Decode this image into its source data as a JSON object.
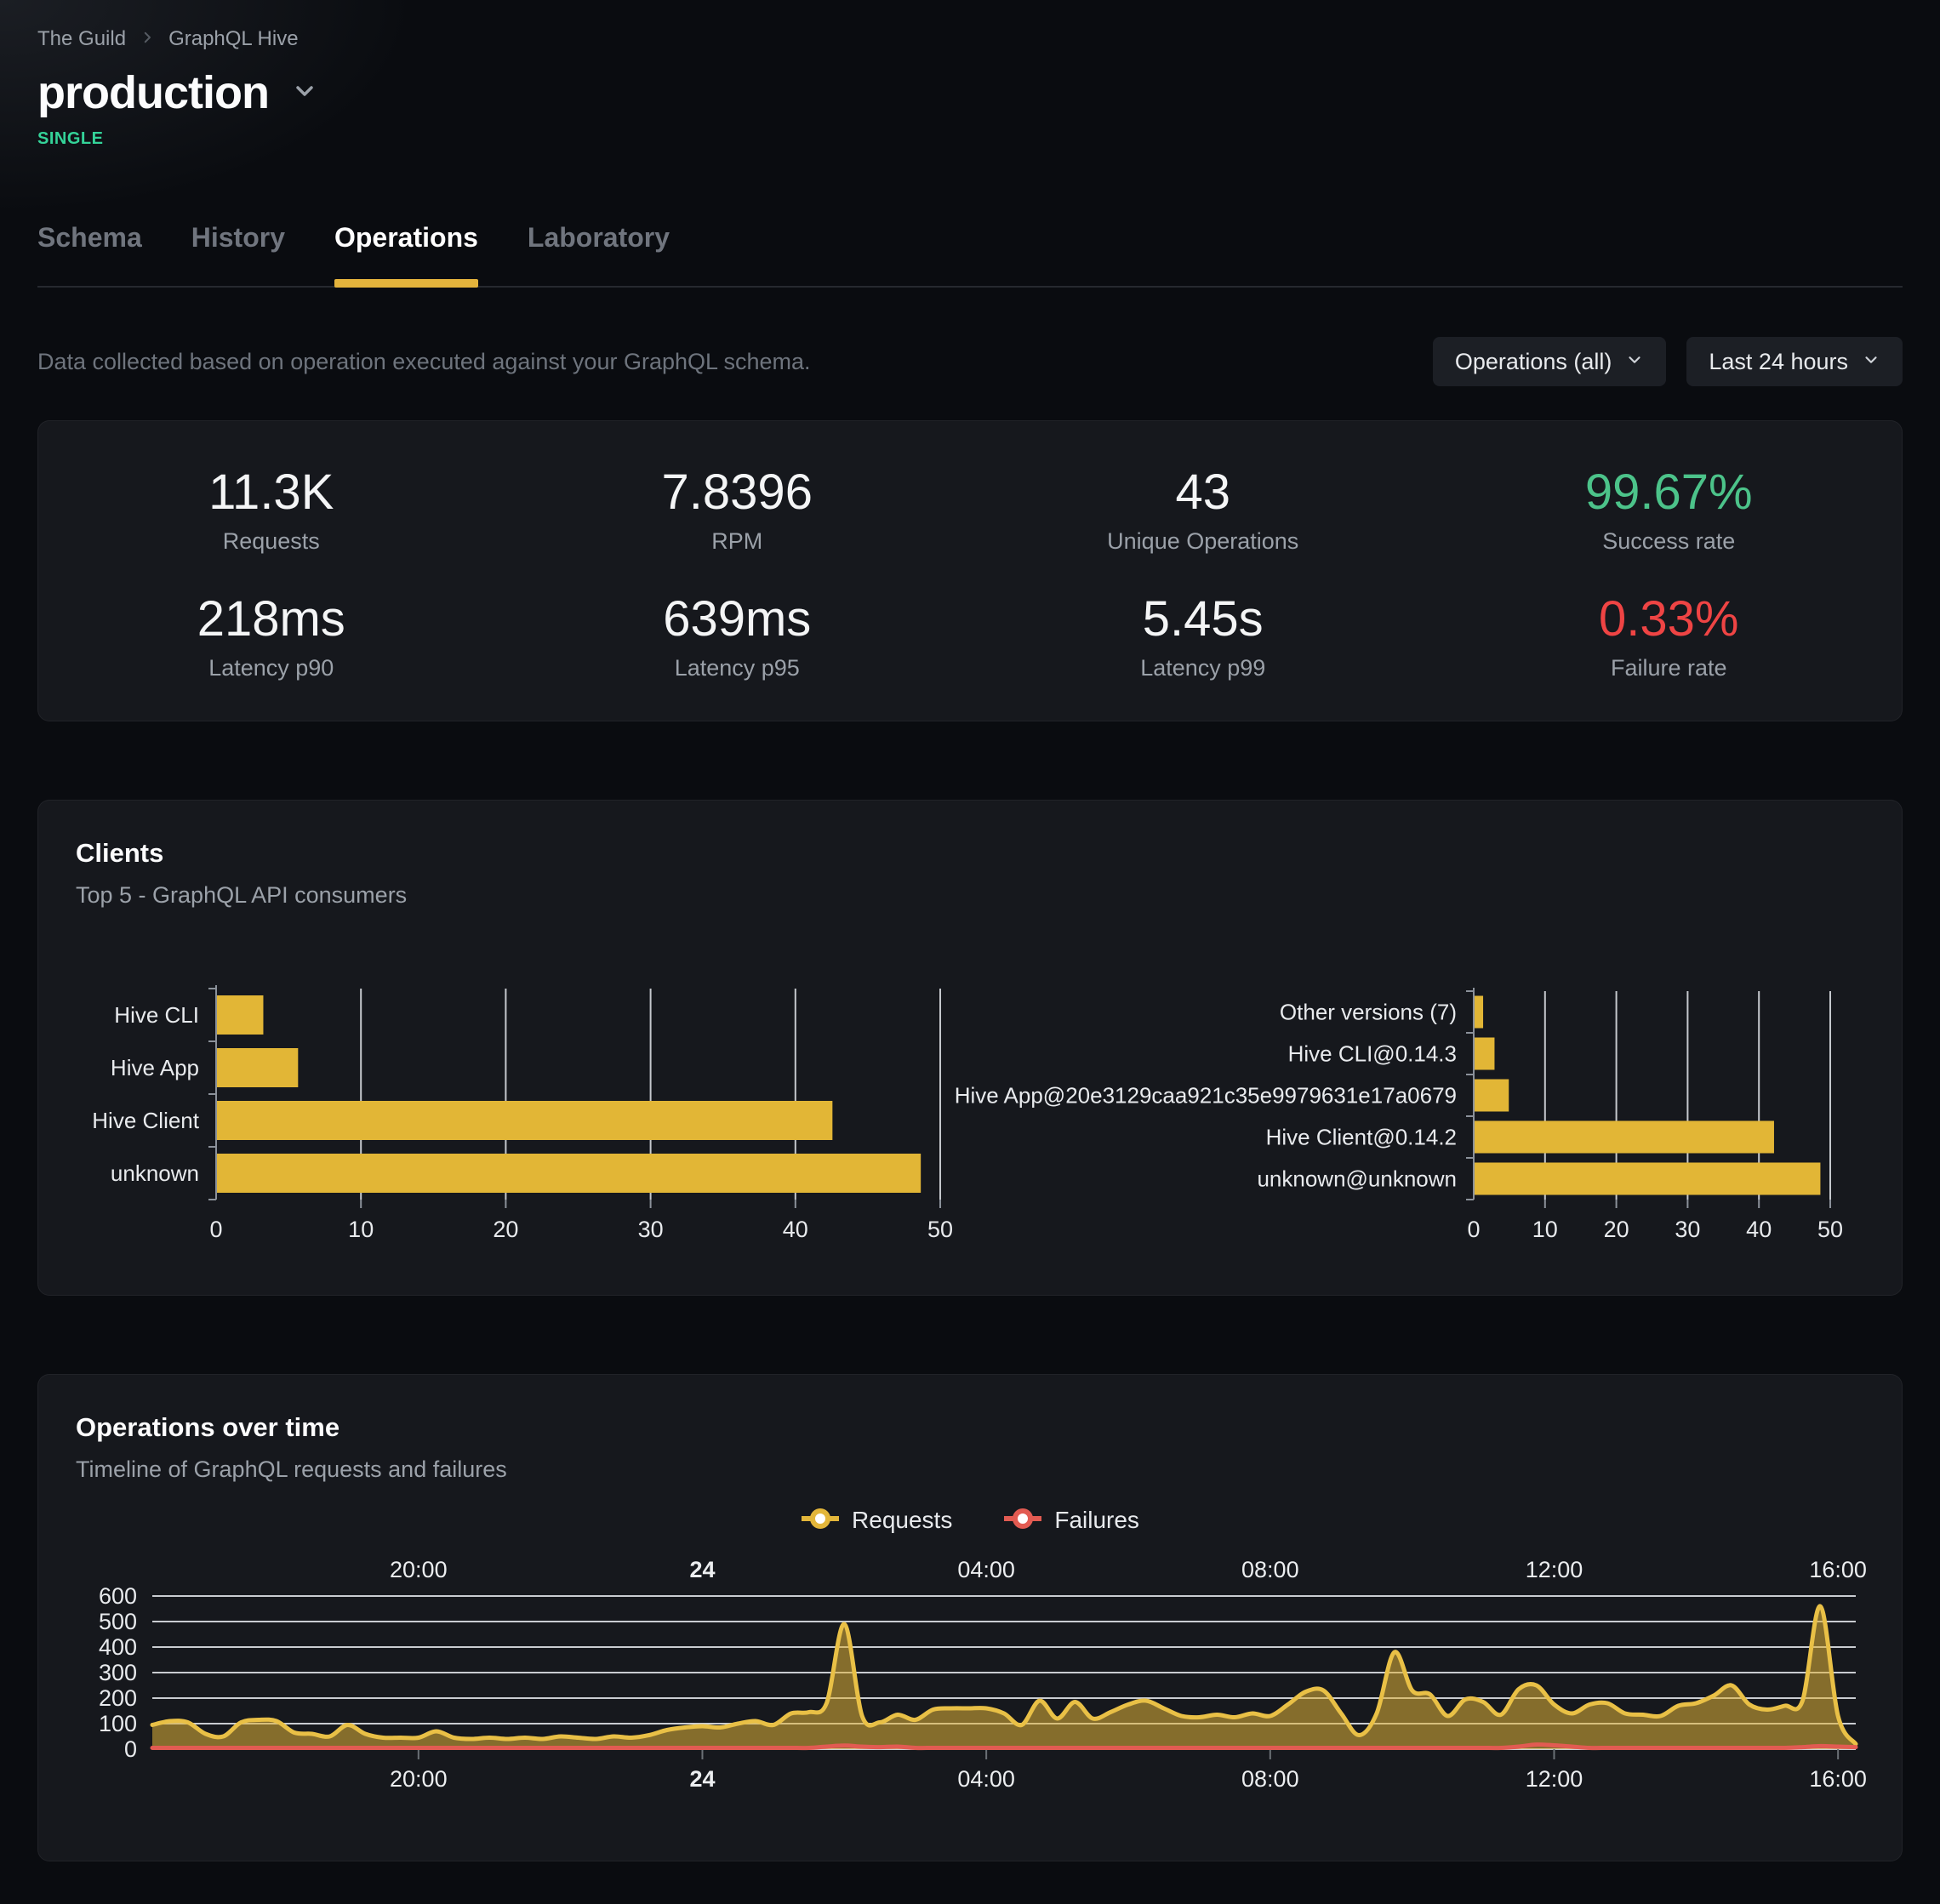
{
  "header": {
    "breadcrumb": {
      "org": "The Guild",
      "project": "GraphQL Hive"
    },
    "target_name": "production",
    "target_type": "SINGLE",
    "tabs": [
      {
        "label": "Schema",
        "active": false
      },
      {
        "label": "History",
        "active": false
      },
      {
        "label": "Operations",
        "active": true
      },
      {
        "label": "Laboratory",
        "active": false
      }
    ]
  },
  "filters": {
    "description": "Data collected based on operation executed against your GraphQL schema.",
    "operations_dropdown": "Operations (all)",
    "period_dropdown": "Last 24 hours"
  },
  "stats": {
    "items": [
      {
        "value": "11.3K",
        "label": "Requests"
      },
      {
        "value": "7.8396",
        "label": "RPM"
      },
      {
        "value": "43",
        "label": "Unique Operations"
      },
      {
        "value": "99.67%",
        "label": "Success rate",
        "color": "#4cc38a"
      },
      {
        "value": "218ms",
        "label": "Latency p90"
      },
      {
        "value": "639ms",
        "label": "Latency p95"
      },
      {
        "value": "5.45s",
        "label": "Latency p99"
      },
      {
        "value": "0.33%",
        "label": "Failure rate",
        "color": "#ef4444"
      }
    ]
  },
  "clients": {
    "title": "Clients",
    "subtitle": "Top 5 - GraphQL API consumers"
  },
  "operations_over_time": {
    "title": "Operations over time",
    "subtitle": "Timeline of GraphQL requests and failures",
    "legend": [
      {
        "label": "Requests",
        "color": "#e3b63a"
      },
      {
        "label": "Failures",
        "color": "#e25b52"
      }
    ]
  },
  "colors": {
    "bar_yellow": "#e2b636",
    "line_yellow_stroke": "#e9c046",
    "area_yellow_fill": "rgba(226,181,56,0.55)",
    "failures_red": "#e25b52",
    "success_green": "#4cc38a",
    "failure_rate_red": "#ef4444",
    "accent_badge_green": "#34d399",
    "tab_underline": "#e3b33c",
    "gridline": "#d9dce1",
    "axis_gray": "#8b919a",
    "card_bg": "#16181d",
    "page_bg": "#0a0c10"
  },
  "chart_data": [
    {
      "id": "clients-by-name",
      "type": "bar",
      "orientation": "horizontal",
      "categories": [
        "Hive CLI",
        "Hive App",
        "Hive Client",
        "unknown"
      ],
      "values": [
        3.2,
        5.6,
        42.5,
        48.6
      ],
      "xlim": [
        0,
        50
      ],
      "xticks": [
        0,
        10,
        20,
        30,
        40,
        50
      ],
      "grid": true
    },
    {
      "id": "clients-by-version",
      "type": "bar",
      "orientation": "horizontal",
      "categories": [
        "Other versions (7)",
        "Hive CLI@0.14.3",
        "Hive App@20e3129caa921c35e9979631e17a0679",
        "Hive Client@0.14.2",
        "unknown@unknown"
      ],
      "values": [
        1.2,
        2.8,
        4.8,
        42.0,
        48.5
      ],
      "xlim": [
        0,
        50
      ],
      "xticks": [
        0,
        10,
        20,
        30,
        40,
        50
      ],
      "grid": true
    },
    {
      "id": "operations-over-time",
      "type": "area",
      "start_time": "16:15",
      "interval_minutes": 15,
      "duration_hours": 24,
      "ylim": [
        0,
        600
      ],
      "yticks": [
        0,
        100,
        200,
        300,
        400,
        500,
        600
      ],
      "x_ticks": [
        {
          "label": "20:00",
          "hours_from_start": 3.75
        },
        {
          "label": "24",
          "hours_from_start": 7.75,
          "emphasis": true
        },
        {
          "label": "04:00",
          "hours_from_start": 11.75
        },
        {
          "label": "08:00",
          "hours_from_start": 15.75
        },
        {
          "label": "12:00",
          "hours_from_start": 19.75
        },
        {
          "label": "16:00",
          "hours_from_start": 23.75
        }
      ],
      "series": [
        {
          "name": "Requests",
          "color": "#e3b63a",
          "values": [
            95,
            110,
            105,
            60,
            50,
            105,
            115,
            110,
            65,
            60,
            50,
            95,
            60,
            45,
            45,
            45,
            70,
            45,
            40,
            45,
            40,
            45,
            40,
            50,
            45,
            40,
            50,
            45,
            55,
            75,
            85,
            90,
            85,
            100,
            110,
            95,
            140,
            145,
            180,
            490,
            130,
            105,
            135,
            115,
            155,
            160,
            160,
            160,
            140,
            95,
            190,
            120,
            185,
            120,
            145,
            175,
            190,
            160,
            130,
            125,
            135,
            125,
            140,
            130,
            175,
            225,
            230,
            140,
            55,
            140,
            380,
            230,
            215,
            130,
            195,
            185,
            135,
            235,
            250,
            175,
            140,
            175,
            180,
            140,
            135,
            130,
            170,
            180,
            210,
            250,
            175,
            155,
            170,
            190,
            560,
            130,
            20
          ]
        },
        {
          "name": "Failures",
          "color": "#e25b52",
          "values": [
            5,
            5,
            5,
            5,
            5,
            5,
            5,
            5,
            5,
            5,
            5,
            5,
            5,
            5,
            5,
            5,
            5,
            5,
            5,
            5,
            5,
            5,
            5,
            5,
            5,
            5,
            5,
            5,
            5,
            5,
            5,
            5,
            5,
            5,
            5,
            5,
            5,
            5,
            10,
            14,
            10,
            8,
            10,
            5,
            5,
            5,
            5,
            5,
            5,
            5,
            5,
            5,
            5,
            5,
            5,
            5,
            5,
            5,
            5,
            5,
            5,
            5,
            5,
            5,
            5,
            5,
            5,
            5,
            5,
            5,
            5,
            5,
            5,
            5,
            5,
            5,
            5,
            10,
            18,
            15,
            10,
            5,
            5,
            5,
            5,
            5,
            5,
            5,
            5,
            5,
            5,
            5,
            5,
            8,
            12,
            10,
            8
          ]
        }
      ]
    }
  ]
}
